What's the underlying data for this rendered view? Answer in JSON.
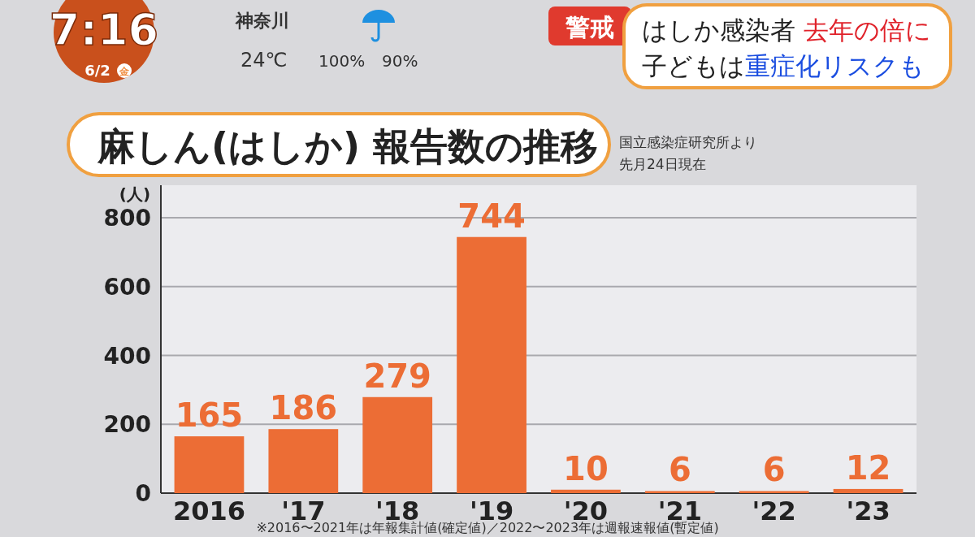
{
  "chart_data": {
    "type": "bar",
    "title": "麻しん(はしか) 報告数の推移",
    "ylabel": "(人)",
    "categories": [
      "2016",
      "'17",
      "'18",
      "'19",
      "'20",
      "'21",
      "'22",
      "'23"
    ],
    "values": [
      165,
      186,
      279,
      744,
      10,
      6,
      6,
      12
    ],
    "color": "#ec6d35",
    "ylim": [
      0,
      800
    ],
    "yticks": [
      0,
      200,
      400,
      600,
      800
    ],
    "grid": "y",
    "data_labels": true,
    "annotations": [
      "国立感染症研究所より",
      "先月24日現在",
      "※2016〜2021年は年報集計値(確定値)／2022〜2023年は週報速報値(暫定値)",
      "7:16",
      "6/2",
      "金",
      "神奈川",
      "24℃",
      "100%",
      "90%",
      "警戒",
      "はしか感染者",
      "去年の倍に",
      "子どもは",
      "重症化リスクも"
    ]
  }
}
